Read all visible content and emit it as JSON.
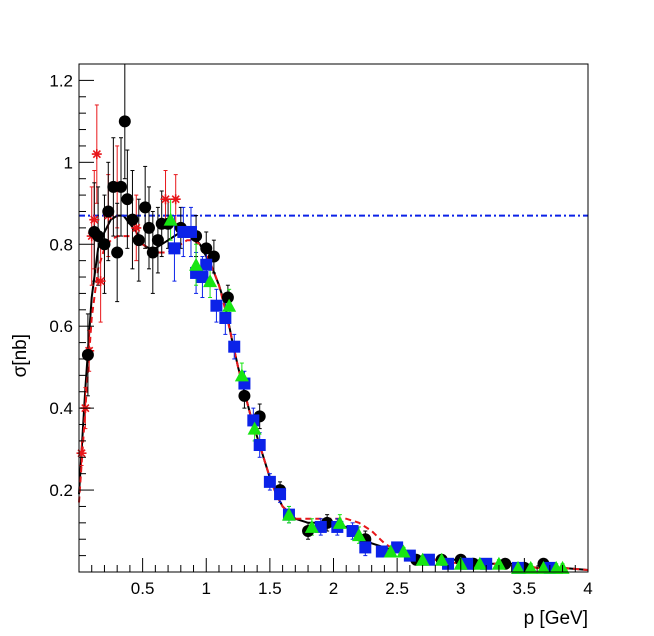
{
  "chart_data": {
    "type": "scatter",
    "title": "",
    "xlabel": "p [GeV]",
    "ylabel": "σ[nb]",
    "xlim": [
      0.0,
      4.0
    ],
    "ylim": [
      0.0,
      1.24
    ],
    "xticks": [
      0.5,
      1,
      1.5,
      2,
      2.5,
      3,
      3.5,
      4
    ],
    "xtick_labels": [
      "0.5",
      "1",
      "1.5",
      "2",
      "2.5",
      "3",
      "3.5",
      "4"
    ],
    "yticks": [
      0.2,
      0.4,
      0.6,
      0.8,
      1.0,
      1.2
    ],
    "ytick_labels": [
      "0.2",
      "0.4",
      "0.6",
      "0.8",
      "1",
      "1.2"
    ],
    "grid": false,
    "series": [
      {
        "name": "red-stars",
        "marker": "star",
        "color": "#e8161a",
        "points": [
          [
            0.02,
            0.29,
            0.03
          ],
          [
            0.05,
            0.4,
            0.05
          ],
          [
            0.08,
            0.54,
            0.05
          ],
          [
            0.1,
            0.82,
            0.12
          ],
          [
            0.12,
            0.86,
            0.12
          ],
          [
            0.14,
            1.02,
            0.12
          ],
          [
            0.17,
            0.71,
            0.1
          ],
          [
            0.23,
            0.87,
            0.1
          ],
          [
            0.3,
            0.94,
            0.1
          ],
          [
            0.45,
            0.84,
            0.08
          ],
          [
            0.68,
            0.91,
            0.07
          ],
          [
            0.76,
            0.91,
            0.06
          ]
        ]
      },
      {
        "name": "black-circles",
        "marker": "circle",
        "color": "#000000",
        "points": [
          [
            0.07,
            0.53,
            0.1
          ],
          [
            0.12,
            0.83,
            0.12
          ],
          [
            0.15,
            0.82,
            0.12
          ],
          [
            0.2,
            0.8,
            0.12
          ],
          [
            0.23,
            0.88,
            0.12
          ],
          [
            0.27,
            0.94,
            0.12
          ],
          [
            0.3,
            0.78,
            0.12
          ],
          [
            0.33,
            0.94,
            0.12
          ],
          [
            0.36,
            1.1,
            0.14
          ],
          [
            0.38,
            0.91,
            0.12
          ],
          [
            0.42,
            0.86,
            0.12
          ],
          [
            0.47,
            0.81,
            0.1
          ],
          [
            0.52,
            0.89,
            0.1
          ],
          [
            0.55,
            0.84,
            0.1
          ],
          [
            0.58,
            0.78,
            0.1
          ],
          [
            0.62,
            0.81,
            0.08
          ],
          [
            0.65,
            0.85,
            0.08
          ],
          [
            0.7,
            0.85,
            0.06
          ],
          [
            0.8,
            0.84,
            0.05
          ],
          [
            0.92,
            0.82,
            0.05
          ],
          [
            1.0,
            0.79,
            0.04
          ],
          [
            1.06,
            0.77,
            0.04
          ],
          [
            1.17,
            0.67,
            0.03
          ],
          [
            1.3,
            0.43,
            0.03
          ],
          [
            1.42,
            0.38,
            0.03
          ],
          [
            1.58,
            0.2,
            0.02
          ],
          [
            1.8,
            0.1,
            0.02
          ],
          [
            1.95,
            0.12,
            0.02
          ],
          [
            2.25,
            0.08,
            0.02
          ],
          [
            2.65,
            0.03,
            0.01
          ],
          [
            2.85,
            0.03,
            0.01
          ],
          [
            3.0,
            0.03,
            0.01
          ],
          [
            3.1,
            0.02,
            0.01
          ],
          [
            3.35,
            0.02,
            0.01
          ],
          [
            3.5,
            0.01,
            0.01
          ],
          [
            3.65,
            0.02,
            0.01
          ]
        ]
      },
      {
        "name": "blue-squares",
        "marker": "square",
        "color": "#0b22e8",
        "points": [
          [
            0.75,
            0.79,
            0.08
          ],
          [
            0.82,
            0.83,
            0.06
          ],
          [
            0.88,
            0.83,
            0.06
          ],
          [
            0.92,
            0.73,
            0.05
          ],
          [
            0.97,
            0.72,
            0.05
          ],
          [
            1.0,
            0.75,
            0.05
          ],
          [
            1.08,
            0.65,
            0.04
          ],
          [
            1.15,
            0.62,
            0.04
          ],
          [
            1.22,
            0.55,
            0.03
          ],
          [
            1.3,
            0.46,
            0.03
          ],
          [
            1.37,
            0.37,
            0.03
          ],
          [
            1.42,
            0.31,
            0.03
          ],
          [
            1.5,
            0.22,
            0.02
          ],
          [
            1.58,
            0.19,
            0.02
          ],
          [
            1.65,
            0.14,
            0.02
          ],
          [
            1.9,
            0.11,
            0.02
          ],
          [
            2.03,
            0.11,
            0.02
          ],
          [
            2.15,
            0.1,
            0.02
          ],
          [
            2.25,
            0.06,
            0.02
          ],
          [
            2.38,
            0.05,
            0.01
          ],
          [
            2.5,
            0.06,
            0.01
          ],
          [
            2.6,
            0.04,
            0.01
          ],
          [
            2.75,
            0.03,
            0.01
          ],
          [
            2.9,
            0.02,
            0.01
          ],
          [
            3.05,
            0.02,
            0.01
          ],
          [
            3.2,
            0.02,
            0.01
          ],
          [
            3.45,
            0.01,
            0.01
          ],
          [
            3.7,
            0.01,
            0.01
          ]
        ]
      },
      {
        "name": "green-triangles",
        "marker": "triangle",
        "color": "#17e512",
        "points": [
          [
            0.72,
            0.86,
            0.05
          ],
          [
            0.92,
            0.75,
            0.05
          ],
          [
            1.03,
            0.71,
            0.04
          ],
          [
            1.18,
            0.65,
            0.04
          ],
          [
            1.28,
            0.48,
            0.03
          ],
          [
            1.38,
            0.35,
            0.03
          ],
          [
            1.65,
            0.14,
            0.02
          ],
          [
            1.83,
            0.11,
            0.02
          ],
          [
            2.05,
            0.12,
            0.02
          ],
          [
            2.2,
            0.09,
            0.02
          ],
          [
            2.45,
            0.05,
            0.01
          ],
          [
            2.55,
            0.05,
            0.01
          ],
          [
            2.7,
            0.03,
            0.01
          ],
          [
            2.85,
            0.03,
            0.01
          ],
          [
            3.0,
            0.02,
            0.01
          ],
          [
            3.15,
            0.02,
            0.01
          ],
          [
            3.3,
            0.02,
            0.01
          ],
          [
            3.45,
            0.01,
            0.01
          ],
          [
            3.55,
            0.01,
            0.01
          ],
          [
            3.65,
            0.01,
            0.01
          ],
          [
            3.75,
            0.01,
            0.01
          ],
          [
            3.8,
            0.01,
            0.01
          ]
        ]
      }
    ],
    "curves": [
      {
        "name": "fit-solid-black",
        "style": "solid",
        "color": "#000000",
        "points": [
          [
            0.0,
            0.19
          ],
          [
            0.05,
            0.45
          ],
          [
            0.1,
            0.67
          ],
          [
            0.15,
            0.79
          ],
          [
            0.2,
            0.83
          ],
          [
            0.25,
            0.86
          ],
          [
            0.3,
            0.87
          ],
          [
            0.35,
            0.87
          ],
          [
            0.4,
            0.85
          ],
          [
            0.45,
            0.83
          ],
          [
            0.5,
            0.8
          ],
          [
            0.55,
            0.79
          ],
          [
            0.6,
            0.79
          ],
          [
            0.65,
            0.8
          ],
          [
            0.7,
            0.81
          ],
          [
            0.75,
            0.82
          ],
          [
            0.8,
            0.83
          ],
          [
            0.85,
            0.83
          ],
          [
            0.9,
            0.82
          ],
          [
            0.95,
            0.8
          ],
          [
            1.0,
            0.77
          ],
          [
            1.05,
            0.74
          ],
          [
            1.1,
            0.7
          ],
          [
            1.15,
            0.65
          ],
          [
            1.2,
            0.57
          ],
          [
            1.25,
            0.5
          ],
          [
            1.3,
            0.44
          ],
          [
            1.35,
            0.38
          ],
          [
            1.4,
            0.33
          ],
          [
            1.45,
            0.28
          ],
          [
            1.5,
            0.23
          ],
          [
            1.55,
            0.19
          ],
          [
            1.6,
            0.16
          ],
          [
            1.7,
            0.13
          ],
          [
            1.8,
            0.12
          ],
          [
            1.9,
            0.12
          ],
          [
            2.0,
            0.11
          ],
          [
            2.1,
            0.11
          ],
          [
            2.2,
            0.09
          ],
          [
            2.3,
            0.07
          ],
          [
            2.4,
            0.06
          ],
          [
            2.5,
            0.05
          ],
          [
            2.6,
            0.04
          ],
          [
            2.8,
            0.03
          ],
          [
            3.0,
            0.03
          ],
          [
            3.2,
            0.02
          ],
          [
            3.4,
            0.02
          ],
          [
            3.6,
            0.01
          ],
          [
            3.8,
            0.01
          ],
          [
            4.0,
            0.005
          ]
        ]
      },
      {
        "name": "fit-dashed-red",
        "style": "dashed",
        "color": "#e8161a",
        "points": [
          [
            0.0,
            0.17
          ],
          [
            0.05,
            0.4
          ],
          [
            0.1,
            0.62
          ],
          [
            0.15,
            0.74
          ],
          [
            0.2,
            0.79
          ],
          [
            0.25,
            0.81
          ],
          [
            0.3,
            0.82
          ],
          [
            0.35,
            0.82
          ],
          [
            0.4,
            0.82
          ],
          [
            0.45,
            0.81
          ],
          [
            0.5,
            0.8
          ],
          [
            0.55,
            0.79
          ],
          [
            0.6,
            0.78
          ],
          [
            0.65,
            0.78
          ],
          [
            0.7,
            0.78
          ],
          [
            0.75,
            0.79
          ],
          [
            0.8,
            0.8
          ],
          [
            0.85,
            0.81
          ],
          [
            0.9,
            0.81
          ],
          [
            0.95,
            0.8
          ],
          [
            1.0,
            0.78
          ],
          [
            1.05,
            0.74
          ],
          [
            1.1,
            0.7
          ],
          [
            1.15,
            0.64
          ],
          [
            1.2,
            0.57
          ],
          [
            1.25,
            0.5
          ],
          [
            1.3,
            0.44
          ],
          [
            1.35,
            0.38
          ],
          [
            1.4,
            0.33
          ],
          [
            1.45,
            0.28
          ],
          [
            1.5,
            0.23
          ],
          [
            1.55,
            0.19
          ],
          [
            1.6,
            0.16
          ],
          [
            1.7,
            0.13
          ],
          [
            1.8,
            0.13
          ],
          [
            1.9,
            0.13
          ],
          [
            2.0,
            0.13
          ],
          [
            2.1,
            0.13
          ],
          [
            2.2,
            0.12
          ],
          [
            2.3,
            0.1
          ],
          [
            2.4,
            0.07
          ],
          [
            2.5,
            0.05
          ],
          [
            2.6,
            0.04
          ],
          [
            2.8,
            0.03
          ],
          [
            3.0,
            0.02
          ],
          [
            3.2,
            0.02
          ],
          [
            3.4,
            0.02
          ],
          [
            3.6,
            0.01
          ],
          [
            3.8,
            0.01
          ],
          [
            4.0,
            0.005
          ]
        ]
      },
      {
        "name": "reference-dashdot-blue",
        "style": "dashdot",
        "color": "#0b22e8",
        "points": [
          [
            0.0,
            0.87
          ],
          [
            4.0,
            0.87
          ]
        ]
      }
    ]
  }
}
